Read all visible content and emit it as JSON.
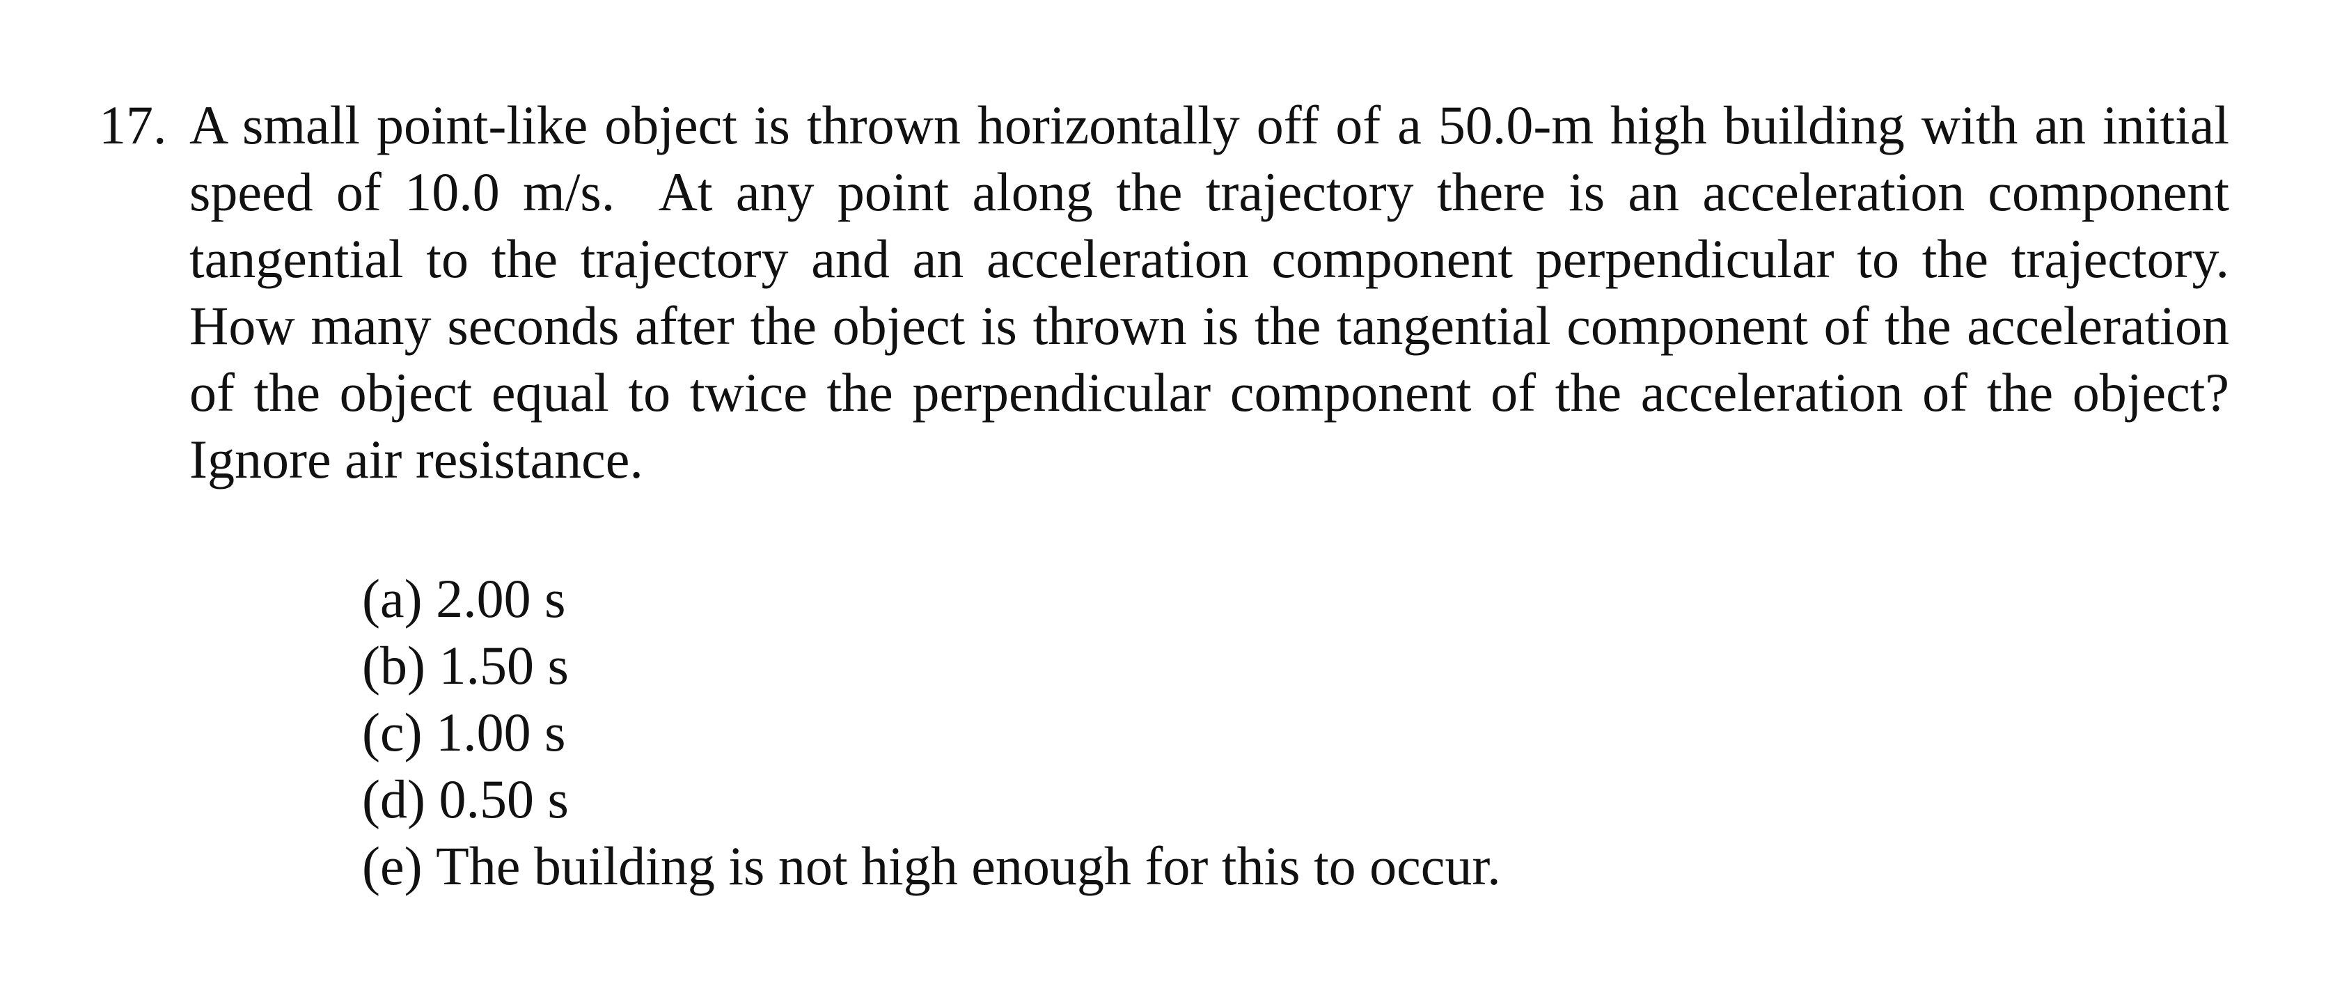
{
  "question": {
    "number": "17.",
    "text": "A small point-like object is thrown horizontally off of a 50.0-m high building with an initial speed of 10.0 m/s.  At any point along the trajectory there is an acceleration component tangential to the trajectory and an acceleration component perpendicular to the trajectory.  How many seconds after the object is thrown is the tangential component of the acceleration of the object equal to twice the perpendicular component of the acceleration of the object?  Ignore air resistance."
  },
  "choices": [
    {
      "label": "(a)",
      "text": "2.00 s"
    },
    {
      "label": "(b)",
      "text": "1.50 s"
    },
    {
      "label": "(c)",
      "text": "1.00 s"
    },
    {
      "label": "(d)",
      "text": "0.50 s"
    },
    {
      "label": "(e)",
      "text": "The building is not high enough for this to occur."
    }
  ]
}
